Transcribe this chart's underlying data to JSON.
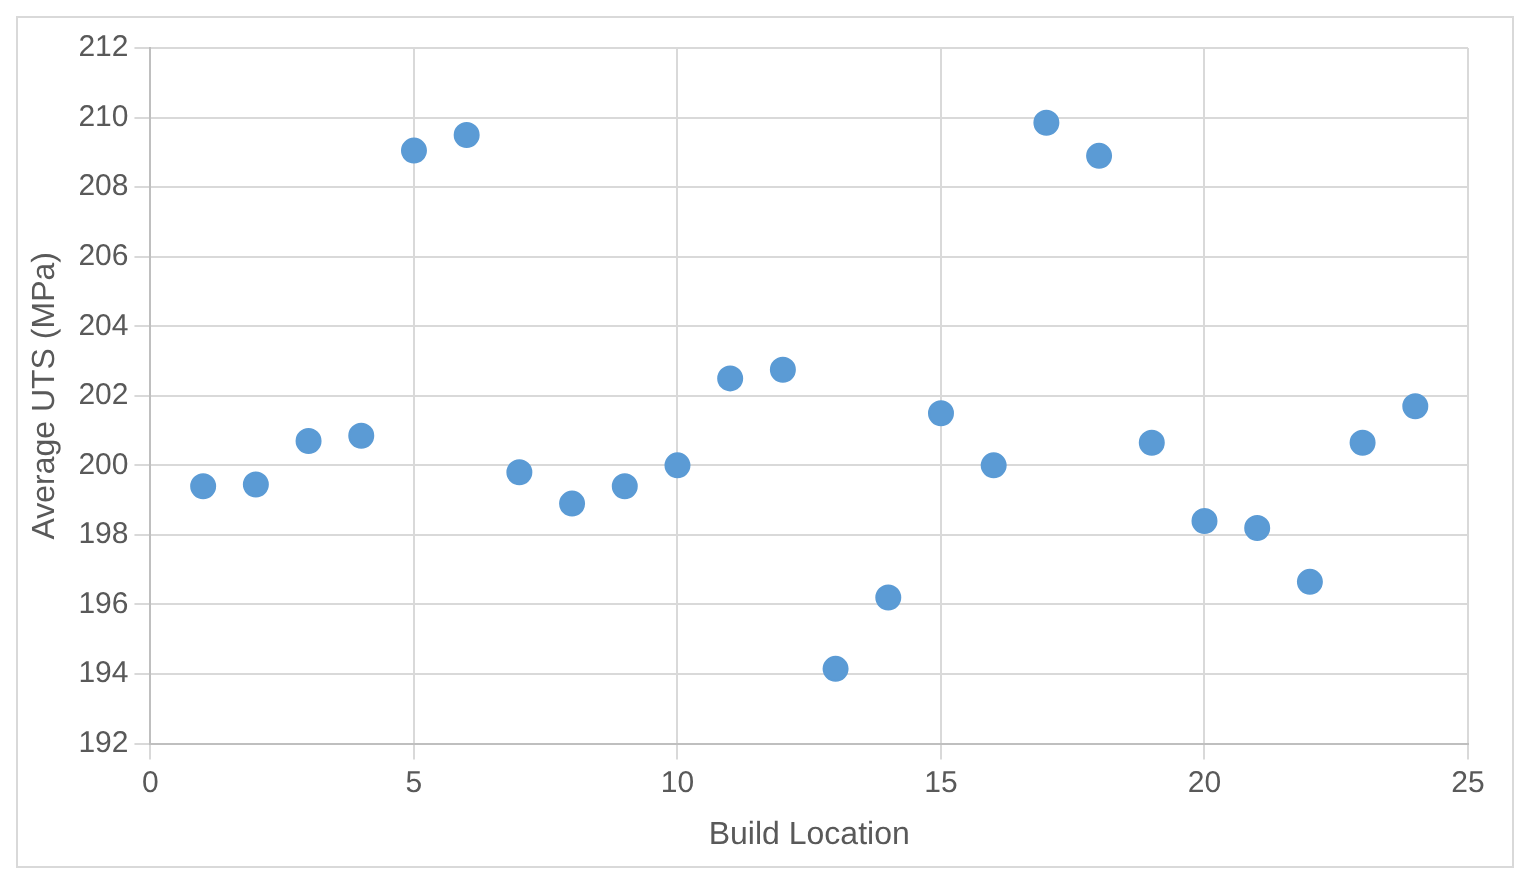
{
  "chart_data": {
    "type": "scatter",
    "xlabel": "Build Location",
    "ylabel": "Average UTS (MPa)",
    "x": [
      1,
      2,
      3,
      4,
      5,
      6,
      7,
      8,
      9,
      10,
      11,
      12,
      13,
      14,
      15,
      16,
      17,
      18,
      19,
      20,
      21,
      22,
      23,
      24
    ],
    "series": [
      {
        "color": "#5b9bd5",
        "values": [
          199.4,
          199.45,
          200.7,
          200.85,
          209.05,
          209.5,
          199.8,
          198.9,
          199.4,
          200.0,
          202.5,
          202.75,
          194.15,
          196.2,
          201.5,
          200.0,
          209.85,
          208.9,
          200.65,
          198.4,
          198.2,
          196.65,
          200.65,
          201.7
        ]
      }
    ],
    "xlim": [
      0,
      25
    ],
    "xticks": [
      0,
      5,
      10,
      15,
      20,
      25
    ],
    "ylim": [
      192,
      212
    ],
    "yticks": [
      192,
      194,
      196,
      198,
      200,
      202,
      204,
      206,
      208,
      210,
      212
    ],
    "grid": true,
    "marker": "circle",
    "legend": false
  }
}
